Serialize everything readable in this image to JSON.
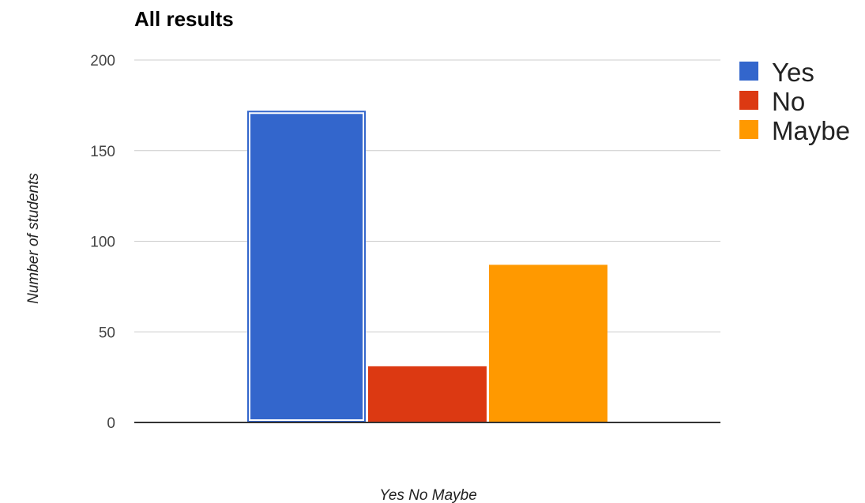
{
  "chart_data": {
    "type": "bar",
    "title": "All results",
    "xlabel": "Yes No Maybe",
    "ylabel": "Number of students",
    "ylim": [
      0,
      200
    ],
    "yticks": [
      0,
      50,
      100,
      150,
      200
    ],
    "grid": true,
    "legend_position": "right",
    "series": [
      {
        "name": "Yes",
        "values": [
          172
        ],
        "color": "#3366cc"
      },
      {
        "name": "No",
        "values": [
          31
        ],
        "color": "#dc3912"
      },
      {
        "name": "Maybe",
        "values": [
          87
        ],
        "color": "#ff9900"
      }
    ]
  }
}
